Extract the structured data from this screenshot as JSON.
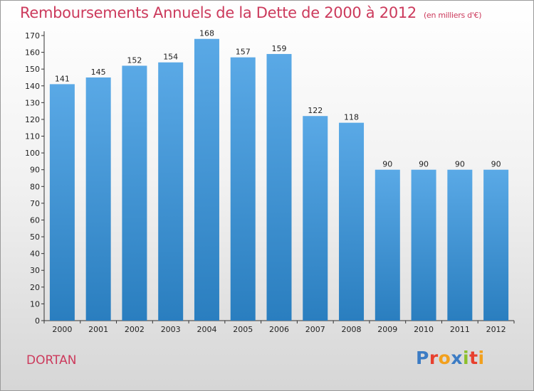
{
  "title": "Remboursements Annuels de la Dette de 2000 à 2012",
  "unit": "(en milliers d'€)",
  "city": "DORTAN",
  "logo": {
    "text": "Proxiti",
    "colors": [
      "#3c7cc4",
      "#e8402e",
      "#f2a01d",
      "#3c7cc4",
      "#8cbf2a",
      "#e8402e",
      "#f2a01d"
    ]
  },
  "colors": {
    "bar_top": "#5aa9e6",
    "bar_bottom": "#2a7ebf",
    "title": "#cc3a5c"
  },
  "chart_data": {
    "type": "bar",
    "categories": [
      "2000",
      "2001",
      "2002",
      "2003",
      "2004",
      "2005",
      "2006",
      "2007",
      "2008",
      "2009",
      "2010",
      "2011",
      "2012"
    ],
    "values": [
      141,
      145,
      152,
      154,
      168,
      157,
      159,
      122,
      118,
      90,
      90,
      90,
      90
    ],
    "ylim": [
      0,
      170
    ],
    "yticks": [
      0,
      10,
      20,
      30,
      40,
      50,
      60,
      70,
      80,
      90,
      100,
      110,
      120,
      130,
      140,
      150,
      160,
      170
    ],
    "grid": false
  }
}
